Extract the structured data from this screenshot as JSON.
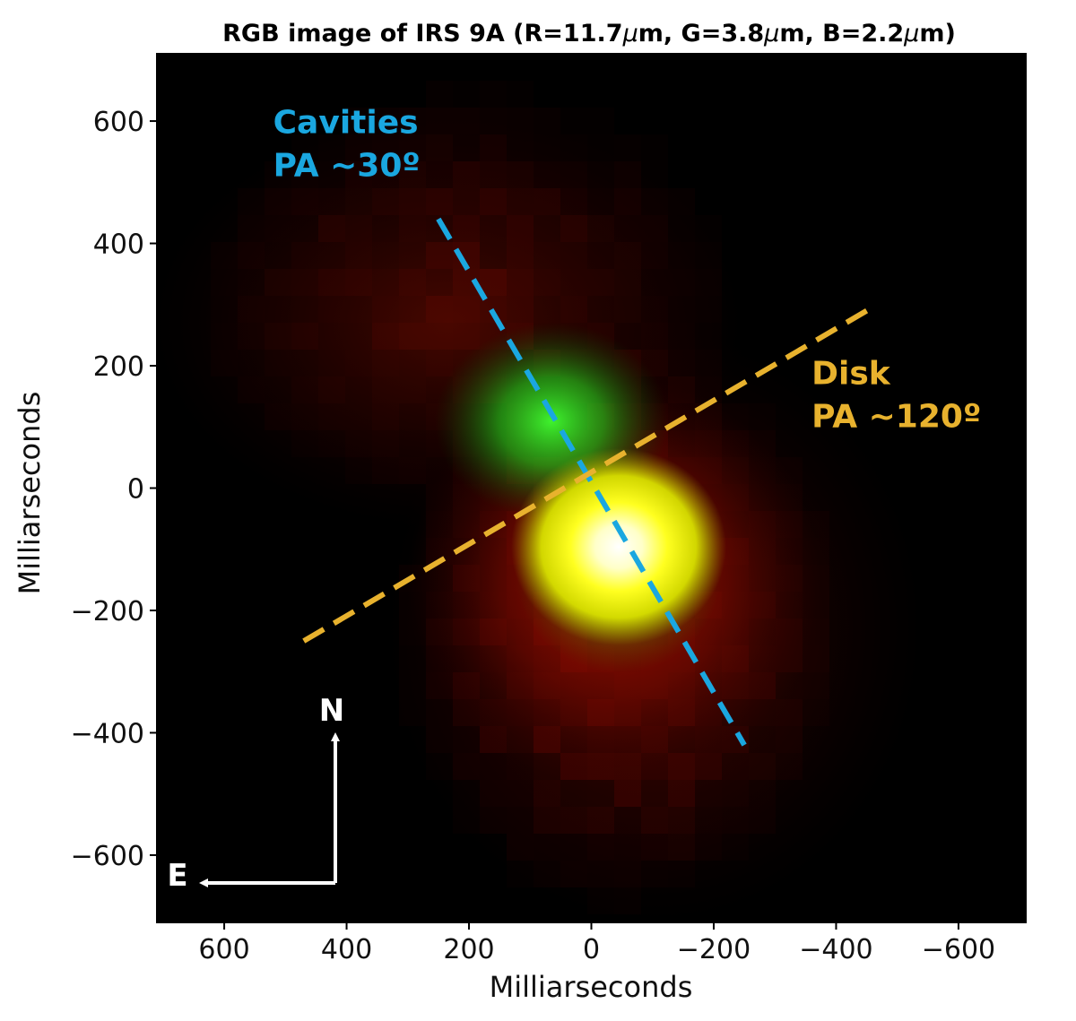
{
  "chart_data": {
    "type": "heatmap",
    "title": "RGB image of IRS 9A (R=11.7μm, G=3.8μm, B=2.2μm)",
    "title_parts": [
      "RGB image of IRS 9A (R=11.7",
      "μ",
      "m, G=3.8",
      "μ",
      "m, B=2.2",
      "μ",
      "m)"
    ],
    "xlabel": "Milliarseconds",
    "ylabel": "Milliarseconds",
    "xlim": [
      710,
      -710
    ],
    "ylim": [
      -710,
      710
    ],
    "x_ticks": [
      600,
      400,
      200,
      0,
      -200,
      -400,
      -600
    ],
    "y_ticks": [
      600,
      400,
      200,
      0,
      -200,
      -400,
      -600
    ],
    "x_tick_labels": [
      "600",
      "400",
      "200",
      "0",
      "−200",
      "−400",
      "−600"
    ],
    "y_tick_labels": [
      "600",
      "400",
      "200",
      "0",
      "−200",
      "−400",
      "−600"
    ],
    "grid": false,
    "channels": [
      {
        "color": "R",
        "wavelength": "11.7μm"
      },
      {
        "color": "G",
        "wavelength": "3.8μm"
      },
      {
        "color": "B",
        "wavelength": "2.2μm"
      }
    ],
    "lines": [
      {
        "name": "cavities",
        "color": "#1aa7e0",
        "style": "dashed",
        "x": [
          250,
          -250
        ],
        "y": [
          440,
          -420
        ]
      },
      {
        "name": "disk",
        "color": "#e8b22e",
        "style": "dashed",
        "x": [
          470,
          -450
        ],
        "y": [
          -250,
          290
        ]
      }
    ],
    "annotations": [
      {
        "label": "Cavities",
        "sublabel": "PA ~30º",
        "color": "#1aa7e0",
        "x": 520,
        "y": 580
      },
      {
        "label": "Disk",
        "sublabel": "PA ~120º",
        "color": "#e8b22e",
        "x": -360,
        "y": 170
      }
    ],
    "compass": {
      "north_label": "N",
      "east_label": "E",
      "color": "#ffffff"
    }
  }
}
